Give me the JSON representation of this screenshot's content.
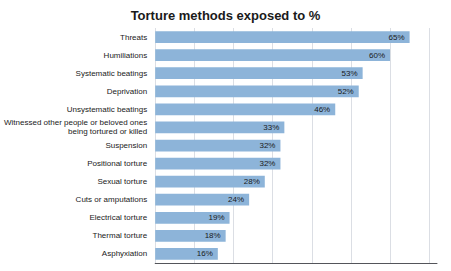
{
  "chart_data": {
    "type": "bar",
    "orientation": "horizontal",
    "title": "Torture methods exposed to %",
    "categories": [
      "Asphyxiation",
      "Thermal torture",
      "Electrical torture",
      "Cuts or amputations",
      "Sexual torture",
      "Positional torture",
      "Suspension",
      "Witnessed other people or beloved ones\nbeing tortured or killed",
      "Unsystematic beatings",
      "Deprivation",
      "Systematic beatings",
      "Humiliations",
      "Threats"
    ],
    "values": [
      16,
      18,
      19,
      24,
      28,
      32,
      32,
      33,
      46,
      52,
      53,
      60,
      65
    ],
    "value_labels": [
      "16%",
      "18%",
      "19%",
      "24%",
      "28%",
      "32%",
      "32%",
      "33%",
      "46%",
      "52%",
      "53%",
      "60%",
      "65%"
    ],
    "color": "#8db4d9",
    "xlim": [
      0,
      72
    ],
    "xticks": [
      0,
      10,
      20,
      30,
      40,
      50,
      60,
      70
    ],
    "grid": true,
    "data_labels": true,
    "tick_labels": "y"
  }
}
